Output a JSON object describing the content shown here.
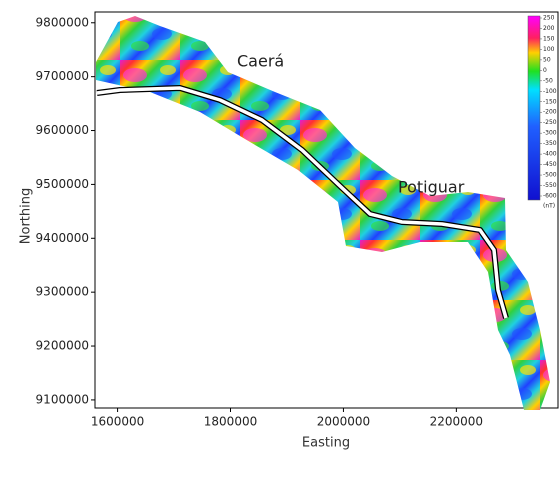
{
  "map": {
    "xlabel": "Easting",
    "ylabel": "Northing",
    "xlim": [
      1560000,
      2380000
    ],
    "ylim": [
      9085000,
      9820000
    ],
    "xticks": [
      1600000,
      1800000,
      2000000,
      2200000
    ],
    "yticks": [
      9100000,
      9200000,
      9300000,
      9400000,
      9500000,
      9600000,
      9700000,
      9800000
    ],
    "place_labels": [
      "Caerá",
      "Potiguar"
    ],
    "colorbar": {
      "clim": [
        -600,
        250
      ],
      "ticks": [
        250,
        200,
        150,
        100,
        50,
        0,
        -50,
        -100,
        -150,
        -200,
        -250,
        -300,
        -350,
        -400,
        -450,
        -500,
        -550,
        -600
      ],
      "unit": "(nT)"
    }
  }
}
